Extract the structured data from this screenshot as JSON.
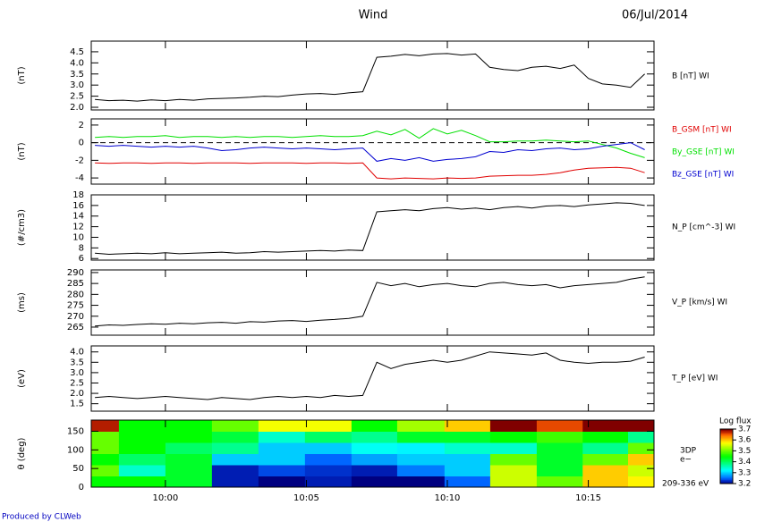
{
  "title": "Wind",
  "date": "06/Jul/2014",
  "footer": "Produced by CLWeb",
  "time_axis": {
    "xlim": [
      597.37,
      617.33
    ],
    "xticks": [
      {
        "value": 600,
        "label": "10:00"
      },
      {
        "value": 605,
        "label": "10:05"
      },
      {
        "value": 610,
        "label": "10:10"
      },
      {
        "value": 615,
        "label": "10:15"
      }
    ],
    "x": [
      597.5,
      598,
      598.5,
      599,
      599.5,
      600,
      600.5,
      601,
      601.5,
      602,
      602.5,
      603,
      603.5,
      604,
      604.5,
      605,
      605.5,
      606,
      606.5,
      607,
      607.5,
      608,
      608.5,
      609,
      609.5,
      610,
      610.5,
      611,
      611.5,
      612,
      612.5,
      613,
      613.5,
      614,
      614.5,
      615,
      615.5,
      616,
      616.5,
      617
    ]
  },
  "chart_data": [
    {
      "type": "line",
      "ylabel": "(nT)",
      "ylim": [
        1.88,
        4.98
      ],
      "yticks": [
        {
          "value": 2,
          "label": "2.0"
        },
        2.5,
        {
          "value": 3,
          "label": "3.0"
        },
        3.5,
        {
          "value": 4,
          "label": "4.0"
        },
        4.5
      ],
      "series": [
        {
          "name": "B [nT] WI",
          "color": "#000000",
          "values": [
            2.35,
            2.3,
            2.32,
            2.28,
            2.33,
            2.3,
            2.35,
            2.32,
            2.38,
            2.4,
            2.42,
            2.45,
            2.5,
            2.48,
            2.55,
            2.6,
            2.62,
            2.58,
            2.65,
            2.7,
            4.25,
            4.3,
            4.38,
            4.32,
            4.4,
            4.42,
            4.35,
            4.4,
            3.8,
            3.7,
            3.65,
            3.8,
            3.85,
            3.75,
            3.9,
            3.3,
            3.05,
            3.0,
            2.9,
            3.5
          ]
        }
      ]
    },
    {
      "type": "line",
      "ylabel": "(nT)",
      "ylim": [
        -4.7,
        2.7
      ],
      "yticks": [
        -4,
        -2,
        0,
        2
      ],
      "zero_line": true,
      "series": [
        {
          "name": "B_GSM [nT] WI",
          "color": "#e00000",
          "values": [
            -2.3,
            -2.35,
            -2.3,
            -2.3,
            -2.35,
            -2.3,
            -2.3,
            -2.35,
            -2.3,
            -2.3,
            -2.3,
            -2.35,
            -2.3,
            -2.3,
            -2.3,
            -2.35,
            -2.3,
            -2.3,
            -2.35,
            -2.3,
            -4.0,
            -4.1,
            -4.0,
            -4.05,
            -4.1,
            -4.0,
            -4.05,
            -4.0,
            -3.8,
            -3.75,
            -3.7,
            -3.7,
            -3.6,
            -3.4,
            -3.1,
            -2.9,
            -2.85,
            -2.8,
            -2.9,
            -3.4
          ]
        },
        {
          "name": "By_GSE [nT] WI",
          "color": "#00e000",
          "values": [
            0.6,
            0.7,
            0.6,
            0.7,
            0.7,
            0.8,
            0.6,
            0.7,
            0.7,
            0.6,
            0.7,
            0.6,
            0.7,
            0.7,
            0.6,
            0.7,
            0.8,
            0.7,
            0.7,
            0.8,
            1.3,
            0.9,
            1.5,
            0.5,
            1.6,
            1.0,
            1.4,
            0.8,
            0.1,
            0.1,
            0.2,
            0.2,
            0.3,
            0.2,
            0.1,
            0.2,
            -0.2,
            -0.6,
            -1.2,
            -1.7
          ]
        },
        {
          "name": "Bz_GSE [nT] WI",
          "color": "#0000d0",
          "values": [
            -0.3,
            -0.4,
            -0.3,
            -0.4,
            -0.5,
            -0.4,
            -0.5,
            -0.4,
            -0.6,
            -0.9,
            -0.8,
            -0.6,
            -0.5,
            -0.6,
            -0.7,
            -0.6,
            -0.7,
            -0.8,
            -0.7,
            -0.6,
            -2.1,
            -1.8,
            -2.0,
            -1.7,
            -2.1,
            -1.9,
            -1.8,
            -1.6,
            -1.0,
            -1.1,
            -0.8,
            -0.9,
            -0.7,
            -0.6,
            -0.8,
            -0.7,
            -0.4,
            -0.2,
            0.0,
            -0.8
          ]
        }
      ]
    },
    {
      "type": "line",
      "ylabel": "(#/cm3)",
      "ylim": [
        5.7,
        18.0
      ],
      "yticks": [
        6,
        8,
        10,
        12,
        14,
        16,
        18
      ],
      "series": [
        {
          "name": "N_P [cm^-3] WI",
          "color": "#000000",
          "values": [
            7.0,
            6.8,
            6.9,
            7.0,
            6.9,
            7.1,
            6.9,
            7.0,
            7.1,
            7.2,
            7.0,
            7.1,
            7.3,
            7.2,
            7.3,
            7.4,
            7.5,
            7.4,
            7.6,
            7.5,
            14.8,
            15.0,
            15.2,
            15.0,
            15.4,
            15.6,
            15.3,
            15.5,
            15.2,
            15.6,
            15.8,
            15.5,
            15.9,
            16.0,
            15.8,
            16.1,
            16.3,
            16.5,
            16.4,
            16.0
          ]
        }
      ]
    },
    {
      "type": "line",
      "ylabel": "(ms)",
      "ylim": [
        261.3,
        291.2
      ],
      "yticks": [
        265,
        270,
        275,
        280,
        285,
        290
      ],
      "series": [
        {
          "name": "V_P [km/s] WI",
          "color": "#000000",
          "values": [
            265.5,
            266,
            265.8,
            266.2,
            266.5,
            266.3,
            266.8,
            266.5,
            267,
            267.2,
            266.8,
            267.5,
            267.3,
            267.8,
            268,
            267.6,
            268.2,
            268.5,
            269,
            270,
            285.5,
            284,
            285,
            283.5,
            284.5,
            285,
            284,
            283.5,
            285,
            285.5,
            284.5,
            284,
            284.5,
            283,
            284,
            284.5,
            285,
            285.5,
            287,
            288
          ]
        }
      ]
    },
    {
      "type": "line",
      "ylabel": "(eV)",
      "ylim": [
        1.14,
        4.29
      ],
      "yticks": [
        1.5,
        {
          "value": 2,
          "label": "2.0"
        },
        2.5,
        {
          "value": 3,
          "label": "3.0"
        },
        3.5,
        {
          "value": 4,
          "label": "4.0"
        }
      ],
      "series": [
        {
          "name": "T_P [eV] WI",
          "color": "#000000",
          "values": [
            1.8,
            1.85,
            1.8,
            1.75,
            1.8,
            1.85,
            1.8,
            1.75,
            1.7,
            1.8,
            1.75,
            1.7,
            1.8,
            1.85,
            1.8,
            1.85,
            1.8,
            1.9,
            1.85,
            1.9,
            3.5,
            3.2,
            3.4,
            3.5,
            3.6,
            3.5,
            3.6,
            3.8,
            4.0,
            3.95,
            3.9,
            3.85,
            3.95,
            3.6,
            3.5,
            3.45,
            3.5,
            3.5,
            3.55,
            3.75
          ]
        }
      ]
    },
    {
      "type": "heatmap",
      "ylabel": "θ (deg)",
      "ylim": [
        0,
        180
      ],
      "yticks": [
        0,
        50,
        100,
        150
      ],
      "x_edges": [
        597.37,
        598.35,
        600,
        601.65,
        603.3,
        604.95,
        606.6,
        608.22,
        609.9,
        611.52,
        613.17,
        614.8,
        616.41,
        617.33
      ],
      "y_edges": [
        0,
        30,
        60,
        90,
        120,
        150,
        180
      ],
      "z": [
        [
          3.45,
          3.45,
          3.43,
          3.22,
          3.2,
          3.22,
          3.2,
          3.2,
          3.25,
          3.55,
          3.5,
          3.6,
          3.58
        ],
        [
          3.5,
          3.35,
          3.43,
          3.22,
          3.24,
          3.23,
          3.22,
          3.26,
          3.3,
          3.55,
          3.43,
          3.6,
          3.55
        ],
        [
          3.45,
          3.4,
          3.43,
          3.3,
          3.3,
          3.25,
          3.28,
          3.3,
          3.3,
          3.5,
          3.43,
          3.5,
          3.6
        ],
        [
          3.5,
          3.45,
          3.4,
          3.38,
          3.3,
          3.3,
          3.33,
          3.32,
          3.35,
          3.35,
          3.43,
          3.38,
          3.5
        ],
        [
          3.5,
          3.45,
          3.45,
          3.42,
          3.35,
          3.4,
          3.38,
          3.43,
          3.43,
          3.45,
          3.48,
          3.45,
          3.38
        ],
        [
          3.68,
          3.45,
          3.45,
          3.5,
          3.57,
          3.57,
          3.45,
          3.53,
          3.6,
          3.7,
          3.66,
          3.7,
          3.7
        ]
      ],
      "annotations": [
        "3DP",
        "e−",
        "209-336 eV"
      ],
      "colorbar": {
        "label": "Log flux",
        "lim": [
          3.2,
          3.7
        ],
        "ticks": [
          3.2,
          3.3,
          3.4,
          3.5,
          3.6,
          3.7
        ]
      }
    }
  ]
}
